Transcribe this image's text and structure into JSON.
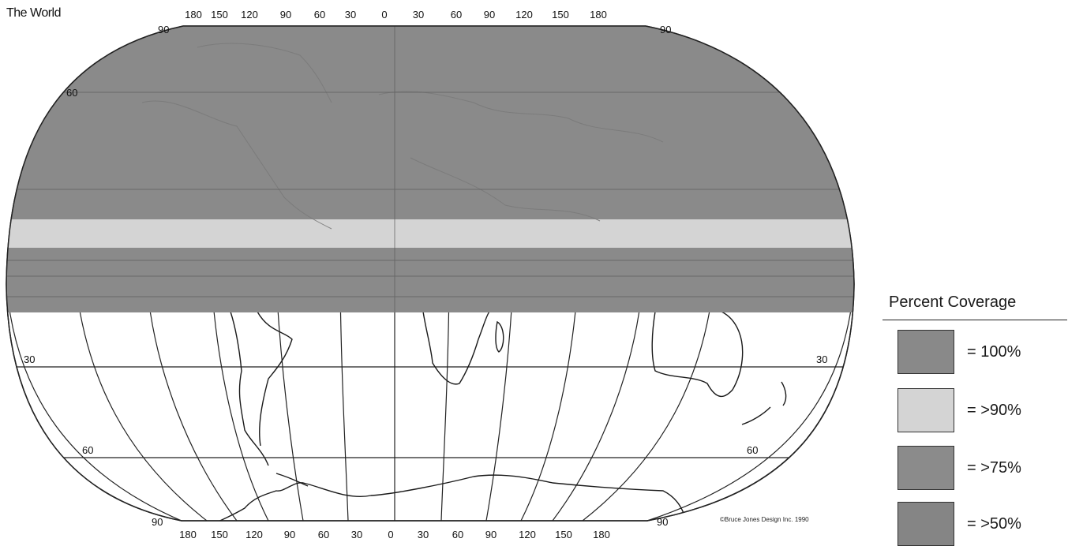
{
  "map": {
    "title": "The World",
    "longitude_labels_top": [
      "180",
      "150",
      "120",
      "90",
      "60",
      "30",
      "0",
      "30",
      "60",
      "90",
      "120",
      "150",
      "180"
    ],
    "longitude_labels_bottom": [
      "180",
      "150",
      "120",
      "90",
      "60",
      "30",
      "0",
      "30",
      "60",
      "90",
      "120",
      "150",
      "180"
    ],
    "latitude_labels": {
      "top_left": "90",
      "top_right": "90",
      "north_60": "60",
      "south_30_left": "30",
      "south_30_right": "30",
      "south_60_left": "60",
      "south_60_right": "60",
      "bottom_left": "90",
      "bottom_right": "90"
    },
    "coverage_bands": [
      {
        "from_lat": 90,
        "to_lat": 9,
        "class": "= 100%"
      },
      {
        "from_lat": 9,
        "to_lat": 0,
        "class": "= >90%"
      },
      {
        "from_lat": 0,
        "to_lat": -15,
        "class": "= 100%"
      }
    ],
    "copyright": "©Bruce Jones Design Inc. 1990"
  },
  "legend": {
    "title": "Percent Coverage",
    "items": [
      {
        "label": "= 100%",
        "color": "#898989"
      },
      {
        "label": "= >90%",
        "color": "#d4d4d4"
      },
      {
        "label": "= >75%",
        "color": "#8b8b8b"
      },
      {
        "label": "= >50%",
        "color": "#858585"
      }
    ]
  },
  "colors": {
    "coverage_100": "#8a8a8a",
    "coverage_90": "#d4d4d4",
    "land_outline": "#1a1a1a",
    "grid": "#222222"
  }
}
